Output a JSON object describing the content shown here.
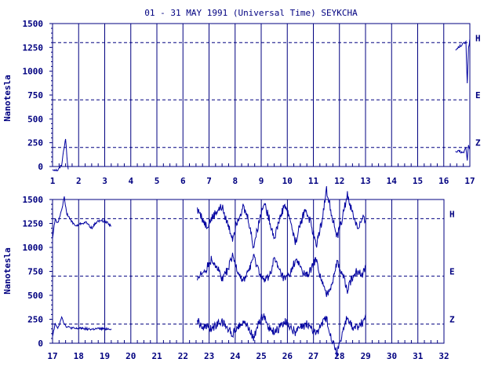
{
  "chart_data": {
    "type": "line",
    "title": "01 - 31 MAY 1991 (Universal Time) SEYKCHA",
    "ylabel": "Nanotesla",
    "y_ticks": [
      "0",
      "250",
      "500",
      "750",
      "1000",
      "1250",
      "1500"
    ],
    "ylim": [
      0,
      1500
    ],
    "grid": "vertical-daily",
    "components": [
      {
        "name": "H",
        "baseline": 1300
      },
      {
        "name": "E",
        "baseline": 700
      },
      {
        "name": "Z",
        "baseline": 200
      }
    ],
    "panels": [
      {
        "x_ticks": [
          "1",
          "2",
          "3",
          "4",
          "5",
          "6",
          "7",
          "8",
          "9",
          "10",
          "11",
          "12",
          "13",
          "14",
          "15",
          "16",
          "17"
        ],
        "xlim": [
          1,
          17
        ],
        "series": [
          {
            "component": "H",
            "x": [
              1.0,
              1.2,
              1.35,
              1.42,
              1.5,
              1.55,
              1.6
            ],
            "y": [
              -30,
              -40,
              20,
              160,
              300,
              90,
              -30
            ]
          },
          {
            "component": "H",
            "x": [
              16.45,
              16.6,
              16.75,
              16.85,
              16.9,
              16.95,
              17.0
            ],
            "y": [
              1220,
              1260,
              1290,
              1300,
              880,
              1240,
              1340
            ]
          },
          {
            "component": "Z",
            "x": [
              16.45,
              16.6,
              16.75,
              16.85,
              16.9,
              16.95,
              17.0
            ],
            "y": [
              150,
              160,
              140,
              200,
              60,
              230,
              180
            ]
          }
        ]
      },
      {
        "x_ticks": [
          "17",
          "18",
          "19",
          "20",
          "21",
          "22",
          "23",
          "24",
          "25",
          "26",
          "27",
          "28",
          "29",
          "30",
          "31",
          "32"
        ],
        "xlim": [
          17,
          32
        ],
        "series": [
          {
            "component": "H",
            "x": [
              17.0,
              17.1,
              17.2,
              17.35,
              17.45,
              17.55,
              17.7,
              17.9,
              18.1,
              18.3,
              18.5,
              18.7,
              18.9,
              19.1,
              19.25
            ],
            "y": [
              1100,
              1300,
              1250,
              1400,
              1520,
              1350,
              1280,
              1220,
              1250,
              1260,
              1200,
              1270,
              1280,
              1260,
              1220
            ]
          },
          {
            "component": "Z",
            "x": [
              17.0,
              17.1,
              17.2,
              17.35,
              17.45,
              17.55,
              17.7,
              17.9,
              18.1,
              18.3,
              18.5,
              18.7,
              18.9,
              19.1,
              19.25
            ],
            "y": [
              80,
              200,
              150,
              280,
              200,
              170,
              160,
              150,
              160,
              150,
              145,
              150,
              150,
              150,
              150
            ]
          },
          {
            "component": "H",
            "x": [
              22.55,
              22.7,
              22.9,
              23.1,
              23.3,
              23.5,
              23.7,
              23.9,
              24.1,
              24.3,
              24.5,
              24.7,
              24.9,
              25.1,
              25.3,
              25.5,
              25.7,
              25.9,
              26.1,
              26.3,
              26.5,
              26.7,
              26.9,
              27.1,
              27.3,
              27.5,
              27.7,
              27.9,
              28.1,
              28.3,
              28.5,
              28.7,
              28.9,
              29.0
            ],
            "y": [
              1400,
              1320,
              1220,
              1300,
              1380,
              1420,
              1250,
              1100,
              1300,
              1420,
              1300,
              1000,
              1250,
              1480,
              1300,
              1100,
              1300,
              1450,
              1300,
              1050,
              1250,
              1400,
              1250,
              1020,
              1250,
              1600,
              1350,
              1100,
              1300,
              1550,
              1350,
              1200,
              1300,
              1250
            ]
          },
          {
            "component": "E",
            "x": [
              22.55,
              22.7,
              22.9,
              23.1,
              23.3,
              23.5,
              23.7,
              23.9,
              24.1,
              24.3,
              24.5,
              24.7,
              24.9,
              25.1,
              25.3,
              25.5,
              25.7,
              25.9,
              26.1,
              26.3,
              26.5,
              26.7,
              26.9,
              27.1,
              27.3,
              27.5,
              27.7,
              27.9,
              28.1,
              28.3,
              28.5,
              28.7,
              28.9,
              29.0
            ],
            "y": [
              700,
              720,
              780,
              880,
              800,
              680,
              760,
              900,
              760,
              640,
              750,
              900,
              760,
              640,
              700,
              880,
              750,
              660,
              720,
              860,
              800,
              700,
              760,
              880,
              650,
              500,
              620,
              850,
              720,
              560,
              700,
              760,
              720,
              820
            ]
          },
          {
            "component": "Z",
            "x": [
              22.55,
              22.7,
              22.9,
              23.1,
              23.3,
              23.5,
              23.7,
              23.9,
              24.1,
              24.3,
              24.5,
              24.7,
              24.9,
              25.1,
              25.3,
              25.5,
              25.7,
              25.9,
              26.1,
              26.3,
              26.5,
              26.7,
              26.9,
              27.1,
              27.3,
              27.5,
              27.7,
              27.9,
              28.1,
              28.3,
              28.5,
              28.7,
              28.9,
              29.0
            ],
            "y": [
              250,
              180,
              160,
              150,
              200,
              230,
              150,
              100,
              180,
              230,
              160,
              60,
              200,
              300,
              150,
              120,
              160,
              230,
              170,
              120,
              150,
              200,
              170,
              100,
              200,
              260,
              50,
              -100,
              100,
              280,
              150,
              180,
              220,
              300
            ]
          }
        ]
      }
    ]
  }
}
